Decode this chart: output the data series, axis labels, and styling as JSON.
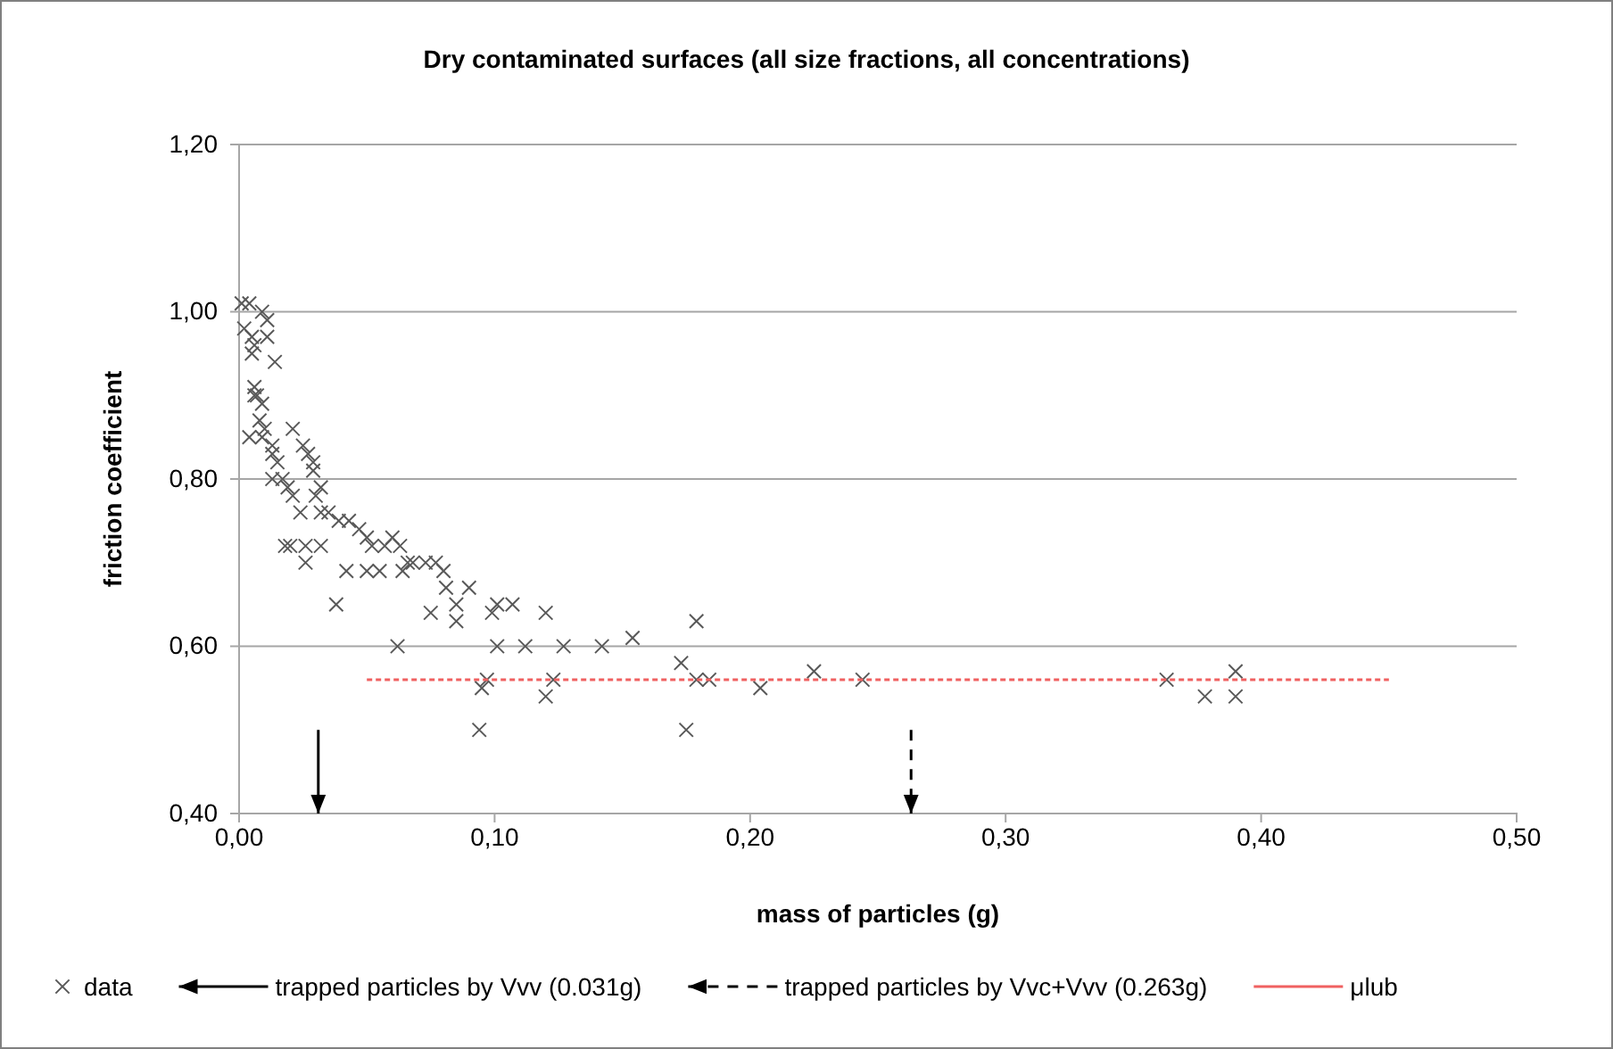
{
  "chart_data": {
    "type": "scatter",
    "title": "Dry contaminated surfaces (all size fractions, all concentrations)",
    "xlabel": "mass of particles (g)",
    "ylabel": "friction coefficient",
    "xlim": [
      0,
      0.5
    ],
    "ylim": [
      0.4,
      1.2
    ],
    "xticks": [
      {
        "value": 0,
        "label": "0,00"
      },
      {
        "value": 0.1,
        "label": "0,10"
      },
      {
        "value": 0.2,
        "label": "0,20"
      },
      {
        "value": 0.3,
        "label": "0,30"
      },
      {
        "value": 0.4,
        "label": "0,40"
      },
      {
        "value": 0.5,
        "label": "0,50"
      }
    ],
    "yticks": [
      {
        "value": 0.4,
        "label": "0,40"
      },
      {
        "value": 0.6,
        "label": "0,60"
      },
      {
        "value": 0.8,
        "label": "0,80"
      },
      {
        "value": 1.0,
        "label": "1,00"
      },
      {
        "value": 1.2,
        "label": "1,20"
      }
    ],
    "grid": "y",
    "legend": "bottom",
    "series": [
      {
        "name": "data",
        "marker": "cross",
        "color": "#595959",
        "x": [
          0.001,
          0.004,
          0.002,
          0.005,
          0.009,
          0.011,
          0.011,
          0.006,
          0.005,
          0.014,
          0.006,
          0.007,
          0.006,
          0.009,
          0.004,
          0.008,
          0.01,
          0.009,
          0.021,
          0.013,
          0.013,
          0.015,
          0.025,
          0.029,
          0.027,
          0.013,
          0.017,
          0.019,
          0.021,
          0.029,
          0.032,
          0.03,
          0.024,
          0.032,
          0.035,
          0.018,
          0.02,
          0.026,
          0.026,
          0.032,
          0.039,
          0.043,
          0.047,
          0.05,
          0.038,
          0.042,
          0.05,
          0.055,
          0.052,
          0.057,
          0.06,
          0.063,
          0.066,
          0.068,
          0.073,
          0.077,
          0.064,
          0.062,
          0.075,
          0.08,
          0.081,
          0.085,
          0.085,
          0.09,
          0.094,
          0.095,
          0.097,
          0.099,
          0.101,
          0.101,
          0.107,
          0.112,
          0.12,
          0.12,
          0.123,
          0.127,
          0.142,
          0.154,
          0.173,
          0.175,
          0.179,
          0.179,
          0.184,
          0.204,
          0.225,
          0.244,
          0.363,
          0.378,
          0.39,
          0.39
        ],
        "values": [
          1.01,
          1.01,
          0.98,
          0.97,
          1.0,
          0.99,
          0.97,
          0.96,
          0.95,
          0.94,
          0.91,
          0.9,
          0.9,
          0.89,
          0.85,
          0.87,
          0.86,
          0.85,
          0.86,
          0.84,
          0.83,
          0.82,
          0.84,
          0.82,
          0.83,
          0.8,
          0.8,
          0.79,
          0.78,
          0.81,
          0.79,
          0.78,
          0.76,
          0.76,
          0.76,
          0.72,
          0.72,
          0.72,
          0.7,
          0.72,
          0.75,
          0.75,
          0.74,
          0.73,
          0.65,
          0.69,
          0.69,
          0.69,
          0.72,
          0.72,
          0.73,
          0.72,
          0.7,
          0.7,
          0.7,
          0.7,
          0.69,
          0.6,
          0.64,
          0.69,
          0.67,
          0.65,
          0.63,
          0.67,
          0.5,
          0.55,
          0.56,
          0.64,
          0.65,
          0.6,
          0.65,
          0.6,
          0.64,
          0.54,
          0.56,
          0.6,
          0.6,
          0.61,
          0.58,
          0.5,
          0.63,
          0.56,
          0.56,
          0.55,
          0.57,
          0.56,
          0.56,
          0.54,
          0.57,
          0.54
        ]
      },
      {
        "name": "trapped particles by Vvv (0.031g)",
        "type": "line",
        "line_style": "solid",
        "color": "#000000",
        "x": [
          0.031,
          0.031
        ],
        "values": [
          0.5,
          0.4
        ]
      },
      {
        "name": "trapped particles by Vvc+Vvv (0.263g)",
        "type": "line",
        "line_style": "dashed",
        "color": "#000000",
        "x": [
          0.263,
          0.263
        ],
        "values": [
          0.5,
          0.4
        ]
      },
      {
        "name": "μlub",
        "type": "line",
        "line_style": "dotted",
        "color": "#f06060",
        "x": [
          0.05,
          0.45
        ],
        "values": [
          0.56,
          0.56
        ]
      }
    ]
  }
}
